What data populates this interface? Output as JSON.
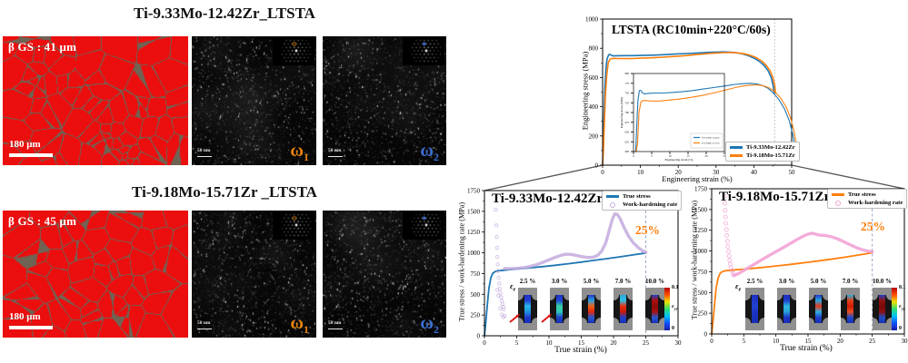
{
  "figure": {
    "rows": [
      {
        "title": "Ti-9.33Mo-12.42Zr_LTSTA",
        "ebsd": {
          "gs_label": "β GS : 41 μm",
          "scale_label": "180 μm"
        },
        "tems": [
          {
            "scale_label": "50 nm",
            "omega_base": "ω",
            "omega_sub": "1",
            "color": "#e8820c",
            "spot": "ring"
          },
          {
            "scale_label": "50 nm",
            "omega_base": "ω",
            "omega_sub": "2",
            "color": "#3d6fd4",
            "spot": "dot"
          }
        ]
      },
      {
        "title": "Ti-9.18Mo-15.71Zr _LTSTA",
        "ebsd": {
          "gs_label": "β GS : 45 μm",
          "scale_label": "180 μm"
        },
        "tems": [
          {
            "scale_label": "50 nm",
            "omega_base": "ω",
            "omega_sub": "1",
            "color": "#e8820c",
            "spot": "ring"
          },
          {
            "scale_label": "50 nm",
            "omega_base": "ω",
            "omega_sub": "2",
            "color": "#3d6fd4",
            "spot": "dot"
          }
        ]
      }
    ]
  },
  "colors": {
    "red_map": "#ee1010",
    "boundary": "#6f6354",
    "blue": "#1f77b4",
    "orange": "#ff7f0e",
    "whr_left": "#c3aade",
    "whr_right": "#f2a3d6",
    "annotation": "#ff7f0e",
    "connector": "#555555",
    "jet": [
      "#1818a8",
      "#1050ff",
      "#00c0ff",
      "#30e070",
      "#f0e000",
      "#ff5000",
      "#b80000"
    ]
  },
  "chart_data": [
    {
      "type": "line",
      "title": "LTSTA (RC10min+220°C/60s)",
      "xlabel": "Engineering strain (%)",
      "ylabel": "Engineering stress (MPa)",
      "xlim": [
        0,
        50
      ],
      "ylim": [
        0,
        1000
      ],
      "xticks": [
        0,
        10,
        20,
        30,
        40,
        50
      ],
      "yticks": [
        0,
        200,
        400,
        600,
        800,
        1000
      ],
      "vline": {
        "x": 45.5,
        "color": "#b5b5b5",
        "dash": "1.5 2.2"
      },
      "series": [
        {
          "name": "Ti-9.33Mo-12.42Zr",
          "color": "#1f77b4",
          "width": 1.6,
          "x": [
            0,
            0.15,
            0.35,
            0.6,
            0.9,
            1.2,
            1.6,
            2.0,
            2.5,
            3,
            4,
            6,
            8,
            10,
            13,
            16,
            19,
            22,
            25,
            28,
            30,
            32,
            34,
            35.5,
            37,
            38.5,
            40,
            41.5,
            42.8,
            43.8,
            44.6,
            45.1,
            45.4
          ],
          "y": [
            0,
            120,
            330,
            530,
            665,
            730,
            756,
            757,
            750,
            748,
            749,
            750,
            750,
            751,
            753,
            756,
            760,
            764,
            768,
            772,
            774,
            775,
            773,
            769,
            762,
            750,
            733,
            710,
            680,
            645,
            600,
            545,
            487
          ]
        },
        {
          "name": "Ti-9.18Mo-15.71Zr",
          "color": "#ff7f0e",
          "width": 1.6,
          "x": [
            0,
            0.2,
            0.45,
            0.75,
            1.1,
            1.5,
            2.0,
            2.5,
            3,
            4,
            6,
            8,
            10,
            13,
            16,
            19,
            22,
            25,
            28,
            30,
            32,
            34,
            36,
            37.5,
            39,
            40.5,
            42,
            43.2,
            44.2,
            45,
            45.5,
            45.7
          ],
          "y": [
            0,
            90,
            280,
            480,
            620,
            700,
            726,
            730,
            731,
            730,
            729,
            730,
            732,
            735,
            739,
            744,
            750,
            757,
            764,
            768,
            770,
            771,
            768,
            762,
            752,
            737,
            714,
            686,
            650,
            603,
            550,
            495
          ]
        }
      ],
      "legend": [
        {
          "label": "Ti-9.33Mo-12.42Zr",
          "color": "#1f77b4",
          "marker": "line"
        },
        {
          "label": "Ti-9.18Mo-15.71Zr",
          "color": "#ff7f0e",
          "marker": "line"
        }
      ],
      "legend_position": "lower right",
      "inset": {
        "xlabel": "Engineering strain (%)",
        "ylabel": "Engineering stress (MPa)",
        "xlim": [
          0,
          25
        ],
        "ylim": [
          600,
          800
        ],
        "xticks": [
          0,
          5,
          10,
          15,
          20,
          25
        ],
        "yticks": [
          600,
          625,
          650,
          675,
          700,
          725,
          750,
          775,
          800
        ],
        "use_parent_series": true
      }
    },
    {
      "type": "line",
      "title": "Ti-9.33Mo-12.42Zr",
      "xlabel": "True strain (%)",
      "ylabel": "True stress / work-hardening rate (MPa)",
      "xlim": [
        0,
        30
      ],
      "ylim": [
        0,
        1750
      ],
      "xticks": [
        0,
        5,
        10,
        15,
        20,
        25,
        30
      ],
      "yticks": [
        0,
        250,
        500,
        750,
        1000,
        1250,
        1500,
        1750
      ],
      "vline": {
        "x": 25,
        "color": "#9aa8c0",
        "dash": "3 2.5"
      },
      "annotation": {
        "text": "25%"
      },
      "series": [
        {
          "name": "True stress",
          "color": "#1f77b4",
          "width": 1.8,
          "x": [
            0,
            0.2,
            0.45,
            0.7,
            1.0,
            1.3,
            1.7,
            2.2,
            3,
            4,
            5,
            7,
            9,
            11,
            13,
            15,
            17,
            19,
            21,
            23,
            24.5,
            25
          ],
          "y": [
            0,
            150,
            380,
            580,
            700,
            755,
            776,
            784,
            790,
            797,
            804,
            818,
            833,
            850,
            868,
            888,
            909,
            930,
            952,
            975,
            992,
            998
          ]
        },
        {
          "name": "Work-hardening rate",
          "color": "#c3aade",
          "width": 3.4,
          "opacity": 0.85,
          "x": [
            3.1,
            3.6,
            4.2,
            5,
            6,
            7,
            8,
            9,
            10,
            11,
            12,
            12.7,
            13.4,
            14.2,
            15,
            15.8,
            16.4,
            17,
            17.6,
            18.2,
            18.8,
            19.3,
            19.8,
            20.2,
            20.6,
            21,
            21.6,
            22.3,
            23,
            23.8,
            24.5,
            25
          ],
          "y": [
            812,
            810,
            810,
            813,
            820,
            833,
            855,
            884,
            916,
            947,
            972,
            983,
            981,
            969,
            955,
            946,
            944,
            950,
            972,
            1025,
            1120,
            1260,
            1400,
            1470,
            1462,
            1415,
            1310,
            1205,
            1125,
            1065,
            1025,
            1005
          ]
        },
        {
          "name": "Work-hardening rate onset",
          "type": "scatter",
          "color": "#c3aade",
          "r": 1.7,
          "opacity": 0.75,
          "x": [
            1.75,
            1.85,
            1.9,
            1.95,
            2.0,
            2.05,
            2.1,
            2.2,
            2.3,
            2.4,
            2.5,
            2.6,
            2.7,
            2.8,
            2.9,
            3.0,
            2.15,
            2.45,
            2.7,
            2.95,
            3.15,
            2.0
          ],
          "y": [
            1520,
            1330,
            1190,
            1060,
            950,
            860,
            780,
            700,
            630,
            565,
            510,
            462,
            420,
            382,
            348,
            318,
            485,
            330,
            255,
            225,
            240,
            555
          ]
        }
      ],
      "legend": [
        {
          "label": "True stress",
          "color": "#1f77b4",
          "marker": "line"
        },
        {
          "label": "Work-hardening rate",
          "color": "#c3aade",
          "marker": "circle"
        }
      ],
      "dic": {
        "eps_base": "ε",
        "eps_sub": "e",
        "labels": [
          "2.5 %",
          "3.0 %",
          "5.0 %",
          "7.0 %",
          "10.0 %"
        ],
        "colorbar_max": "0.1",
        "colorbar_min": "0",
        "colorbar_base": "ε",
        "colorbar_sub": "yy",
        "arrows": [
          0,
          1
        ],
        "gauges": [
          [
            "#2030c8",
            "#2040d0",
            "#28b8e8",
            "#2090e0",
            "#2038c8",
            "#1830b8"
          ],
          [
            "#2030c8",
            "#2048d0",
            "#38d0a0",
            "#30c8c0",
            "#2040c8",
            "#1830b8"
          ],
          [
            "#2038c8",
            "#28a0e0",
            "#f06018",
            "#e02810",
            "#2858d0",
            "#1830b8"
          ],
          [
            "#28a8e0",
            "#30c0e8",
            "#e83010",
            "#c81808",
            "#2040c8",
            "#1830b8"
          ],
          [
            "#2040c8",
            "#b01010",
            "#8c0a0a",
            "#a81010",
            "#2858d0",
            "#1830b8"
          ]
        ]
      }
    },
    {
      "type": "line",
      "title": "Ti-9.18Mo-15.71Zr",
      "xlabel": "True strain (%)",
      "ylabel": "True stress / work-hardening rate (MPa)",
      "xlim": [
        0,
        30
      ],
      "ylim": [
        0,
        1750
      ],
      "xticks": [
        0,
        5,
        10,
        15,
        20,
        25,
        30
      ],
      "yticks": [
        0,
        250,
        500,
        750,
        1000,
        1250,
        1500,
        1750
      ],
      "vline": {
        "x": 25,
        "color": "#9aa8c0",
        "dash": "3 2.5"
      },
      "annotation": {
        "text": "25%"
      },
      "series": [
        {
          "name": "True stress",
          "color": "#ff7f0e",
          "width": 1.8,
          "x": [
            0,
            0.2,
            0.45,
            0.7,
            1.0,
            1.3,
            1.7,
            2.2,
            3,
            4,
            5,
            7,
            9,
            11,
            13,
            15,
            17,
            19,
            21,
            23,
            24.5,
            25
          ],
          "y": [
            0,
            140,
            360,
            555,
            675,
            730,
            752,
            762,
            768,
            774,
            781,
            795,
            810,
            827,
            845,
            864,
            884,
            906,
            929,
            953,
            972,
            980
          ]
        },
        {
          "name": "Work-hardening rate",
          "color": "#f2a3d6",
          "width": 3.4,
          "opacity": 0.9,
          "x": [
            3.5,
            4,
            4.5,
            5,
            6,
            7,
            8,
            9,
            10,
            11,
            12,
            13,
            14,
            14.8,
            15.5,
            16,
            16.5,
            17,
            17.8,
            18.6,
            19.4,
            20.2,
            21,
            21.8,
            22.6,
            23.4,
            24.2,
            25
          ],
          "y": [
            705,
            722,
            742,
            765,
            812,
            858,
            903,
            948,
            992,
            1035,
            1080,
            1125,
            1168,
            1198,
            1213,
            1208,
            1196,
            1190,
            1186,
            1172,
            1152,
            1126,
            1096,
            1066,
            1038,
            1016,
            1000,
            992
          ]
        },
        {
          "name": "Work-hardening rate onset",
          "type": "scatter",
          "color": "#f2a3d6",
          "r": 2.0,
          "opacity": 0.8,
          "x": [
            2.0,
            2.05,
            2.1,
            2.15,
            2.2,
            2.3,
            2.35,
            2.45,
            2.5,
            2.6,
            2.7,
            2.8,
            2.9,
            3.0,
            3.15,
            3.3,
            3.45
          ],
          "y": [
            1660,
            1575,
            1492,
            1410,
            1332,
            1258,
            1188,
            1120,
            1056,
            996,
            940,
            888,
            842,
            800,
            762,
            730,
            710
          ]
        }
      ],
      "legend": [
        {
          "label": "True stress",
          "color": "#ff7f0e",
          "marker": "line"
        },
        {
          "label": "Work-hardening rate",
          "color": "#f2a3d6",
          "marker": "circle"
        }
      ],
      "dic": {
        "eps_base": "ε",
        "eps_sub": "e",
        "labels": [
          "2.5 %",
          "3.0 %",
          "5.0 %",
          "7.0 %",
          "10.0 %"
        ],
        "colorbar_max": "0.1",
        "colorbar_min": "0",
        "colorbar_base": "ε",
        "colorbar_sub": "yy",
        "arrows": [],
        "gauges": [
          [
            "#1c2cc0",
            "#2038c8",
            "#2044cc",
            "#1c34c4",
            "#1830b8",
            "#1830b8"
          ],
          [
            "#1c2cc0",
            "#2040c8",
            "#30b8e0",
            "#28a0d8",
            "#1c34c4",
            "#1830b8"
          ],
          [
            "#2038c8",
            "#28a8e0",
            "#e83818",
            "#30b0e0",
            "#2040c8",
            "#1830b8"
          ],
          [
            "#28b0e0",
            "#e04018",
            "#d01808",
            "#e85020",
            "#2048c8",
            "#1830b8"
          ],
          [
            "#2040c8",
            "#901010",
            "#780808",
            "#8c1010",
            "#2050c8",
            "#1830b8"
          ]
        ]
      }
    }
  ]
}
